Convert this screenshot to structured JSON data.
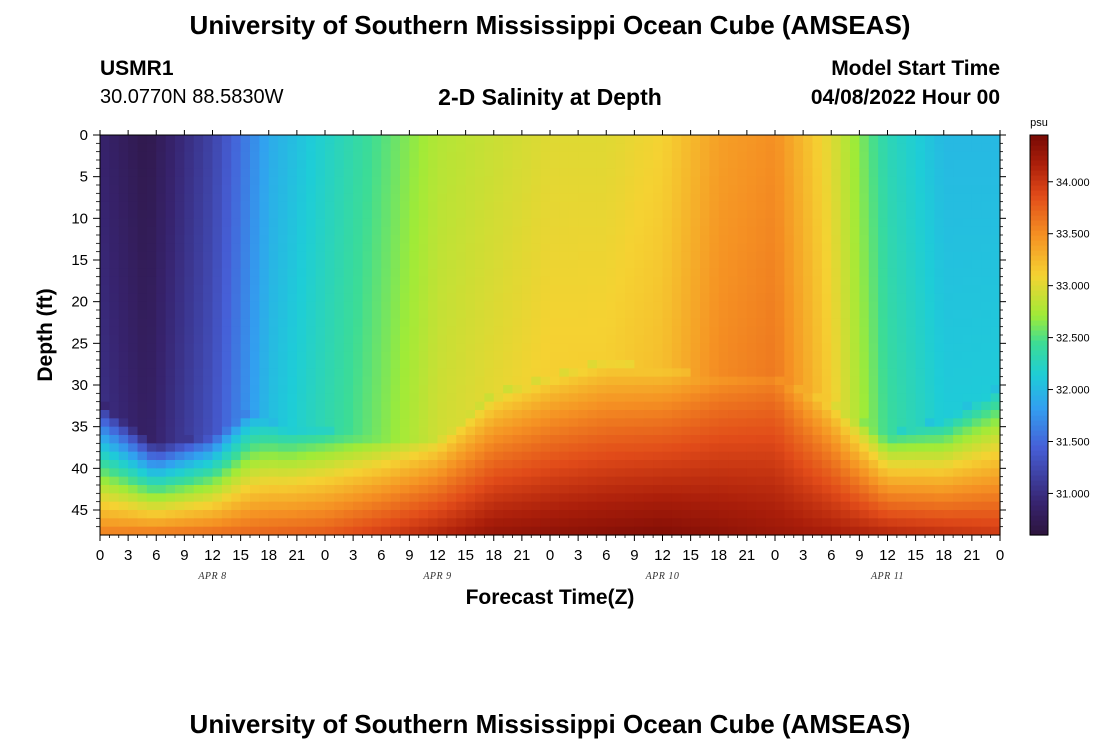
{
  "page": {
    "title": "University of Southern Mississippi Ocean Cube (AMSEAS)",
    "footer_title": "University of Southern Mississippi Ocean Cube (AMSEAS)"
  },
  "header": {
    "station_id": "USMR1",
    "station_coords": "30.0770N  88.5830W",
    "model_start_label": "Model Start Time",
    "model_start_value": "04/08/2022 Hour 00"
  },
  "chart_data": {
    "type": "heatmap",
    "title": "2-D Salinity at Depth",
    "xlabel": "Forecast Time(Z)",
    "ylabel": "Depth (ft)",
    "x_range_hours": [
      0,
      96
    ],
    "y_range_ft": [
      0,
      48
    ],
    "x_tick_labels": [
      "0",
      "3",
      "6",
      "9",
      "12",
      "15",
      "18",
      "21",
      "0",
      "3",
      "6",
      "9",
      "12",
      "15",
      "18",
      "21",
      "0",
      "3",
      "6",
      "9",
      "12",
      "15",
      "18",
      "21",
      "0",
      "3",
      "6",
      "9",
      "12",
      "15",
      "18",
      "21",
      "0"
    ],
    "x_day_labels": [
      {
        "label": "APR 8",
        "hour": 12
      },
      {
        "label": "APR 9",
        "hour": 36
      },
      {
        "label": "APR 10",
        "hour": 60
      },
      {
        "label": "APR 11",
        "hour": 84
      }
    ],
    "y_ticks": [
      0,
      5,
      10,
      15,
      20,
      25,
      30,
      35,
      40,
      45
    ],
    "colorbar": {
      "unit": "psu",
      "range": [
        30.6,
        34.45
      ],
      "ticks": [
        31.0,
        31.5,
        32.0,
        32.5,
        33.0,
        33.5,
        34.0
      ],
      "tick_labels": [
        "31.000",
        "31.500",
        "32.000",
        "32.500",
        "33.000",
        "33.500",
        "34.000"
      ]
    },
    "surface_salinity_psu": [
      {
        "hour": 0,
        "value": 30.9
      },
      {
        "hour": 5,
        "value": 30.7
      },
      {
        "hour": 12,
        "value": 31.2
      },
      {
        "hour": 18,
        "value": 31.9
      },
      {
        "hour": 24,
        "value": 32.2
      },
      {
        "hour": 30,
        "value": 32.5
      },
      {
        "hour": 36,
        "value": 32.8
      },
      {
        "hour": 42,
        "value": 32.9
      },
      {
        "hour": 48,
        "value": 33.0
      },
      {
        "hour": 54,
        "value": 33.0
      },
      {
        "hour": 60,
        "value": 33.1
      },
      {
        "hour": 66,
        "value": 33.4
      },
      {
        "hour": 72,
        "value": 33.5
      },
      {
        "hour": 78,
        "value": 33.0
      },
      {
        "hour": 84,
        "value": 32.3
      },
      {
        "hour": 90,
        "value": 32.0
      },
      {
        "hour": 96,
        "value": 32.0
      }
    ],
    "bottom_salinity_psu": [
      {
        "hour": 0,
        "value": 33.6
      },
      {
        "hour": 24,
        "value": 33.8
      },
      {
        "hour": 42,
        "value": 34.3
      },
      {
        "hour": 60,
        "value": 34.4
      },
      {
        "hour": 78,
        "value": 34.2
      },
      {
        "hour": 96,
        "value": 34.0
      }
    ]
  }
}
